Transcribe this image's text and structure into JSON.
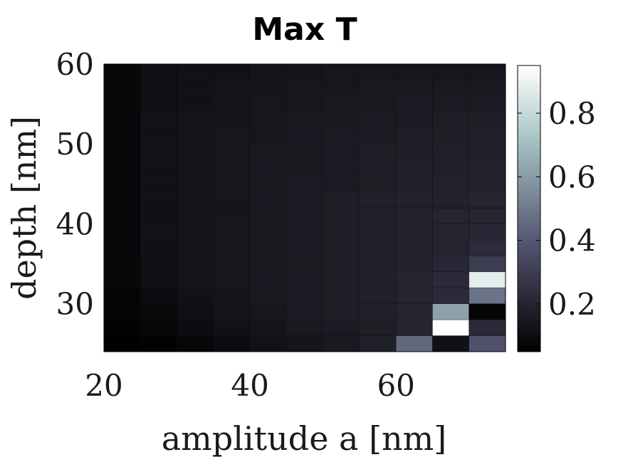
{
  "chart_data": {
    "type": "heatmap",
    "title": "Max T",
    "xlabel": "amplitude a [nm]",
    "ylabel": "depth [nm]",
    "xlim": [
      20,
      75
    ],
    "ylim": [
      24,
      60
    ],
    "x_ticks": [
      "20",
      "40",
      "60"
    ],
    "x_tick_values": [
      20,
      40,
      60
    ],
    "y_ticks": [
      "30",
      "40",
      "50",
      "60"
    ],
    "y_tick_values": [
      30,
      40,
      50,
      60
    ],
    "colorbar": {
      "range": [
        0.05,
        0.95
      ],
      "ticks": [
        "0.2",
        "0.4",
        "0.6",
        "0.8"
      ],
      "tick_values": [
        0.2,
        0.4,
        0.6,
        0.8
      ],
      "colormap": "bone"
    },
    "x": [
      22.5,
      27.5,
      32.5,
      37.5,
      42.5,
      47.5,
      52.5,
      57.5,
      62.5,
      67.5,
      72.5
    ],
    "y": [
      25,
      27,
      29,
      31,
      33,
      35,
      37,
      39,
      41,
      43,
      45,
      47,
      49,
      51,
      53,
      55,
      57,
      59
    ],
    "z": [
      [
        0.05,
        0.06,
        0.08,
        0.1,
        0.12,
        0.13,
        0.15,
        0.18,
        0.45,
        0.12,
        0.38
      ],
      [
        0.06,
        0.08,
        0.1,
        0.12,
        0.13,
        0.15,
        0.16,
        0.17,
        0.2,
        0.95,
        0.22
      ],
      [
        0.07,
        0.09,
        0.11,
        0.13,
        0.14,
        0.16,
        0.17,
        0.18,
        0.2,
        0.62,
        0.07
      ],
      [
        0.07,
        0.1,
        0.12,
        0.13,
        0.15,
        0.16,
        0.17,
        0.18,
        0.2,
        0.22,
        0.48
      ],
      [
        0.08,
        0.11,
        0.13,
        0.14,
        0.15,
        0.16,
        0.17,
        0.18,
        0.2,
        0.22,
        0.88
      ],
      [
        0.08,
        0.11,
        0.13,
        0.14,
        0.15,
        0.16,
        0.17,
        0.18,
        0.19,
        0.21,
        0.3
      ],
      [
        0.08,
        0.12,
        0.13,
        0.14,
        0.15,
        0.16,
        0.17,
        0.18,
        0.19,
        0.2,
        0.23
      ],
      [
        0.08,
        0.12,
        0.13,
        0.14,
        0.15,
        0.16,
        0.17,
        0.18,
        0.19,
        0.2,
        0.21
      ],
      [
        0.08,
        0.12,
        0.13,
        0.14,
        0.15,
        0.16,
        0.17,
        0.18,
        0.19,
        0.2,
        0.2
      ],
      [
        0.08,
        0.12,
        0.13,
        0.14,
        0.15,
        0.16,
        0.17,
        0.18,
        0.19,
        0.19,
        0.2
      ],
      [
        0.08,
        0.12,
        0.13,
        0.14,
        0.15,
        0.16,
        0.16,
        0.17,
        0.18,
        0.19,
        0.19
      ],
      [
        0.08,
        0.12,
        0.13,
        0.14,
        0.15,
        0.15,
        0.16,
        0.17,
        0.18,
        0.18,
        0.19
      ],
      [
        0.08,
        0.12,
        0.13,
        0.14,
        0.15,
        0.15,
        0.16,
        0.17,
        0.17,
        0.18,
        0.18
      ],
      [
        0.08,
        0.12,
        0.13,
        0.14,
        0.14,
        0.15,
        0.16,
        0.16,
        0.17,
        0.17,
        0.18
      ],
      [
        0.08,
        0.12,
        0.13,
        0.13,
        0.14,
        0.15,
        0.15,
        0.16,
        0.16,
        0.17,
        0.17
      ],
      [
        0.08,
        0.11,
        0.12,
        0.13,
        0.14,
        0.14,
        0.15,
        0.15,
        0.16,
        0.16,
        0.16
      ],
      [
        0.08,
        0.11,
        0.12,
        0.13,
        0.13,
        0.14,
        0.14,
        0.15,
        0.15,
        0.15,
        0.15
      ],
      [
        0.08,
        0.11,
        0.12,
        0.12,
        0.13,
        0.13,
        0.14,
        0.14,
        0.14,
        0.14,
        0.14
      ]
    ]
  }
}
